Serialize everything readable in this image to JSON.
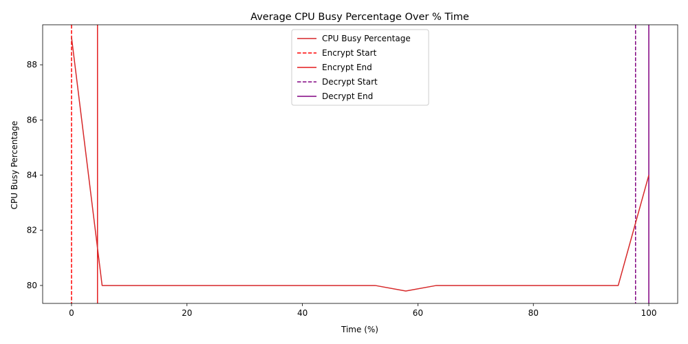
{
  "chart_data": {
    "type": "line",
    "title": "Average CPU Busy Percentage Over % Time",
    "xlabel": "Time (%)",
    "ylabel": "CPU Busy Percentage",
    "xlim": [
      -5,
      105
    ],
    "ylim": [
      79.35,
      89.45
    ],
    "xticks": [
      0,
      20,
      40,
      60,
      80,
      100
    ],
    "yticks": [
      80,
      82,
      84,
      86,
      88
    ],
    "grid": false,
    "legend_position": "top-center",
    "series": [
      {
        "name": "CPU Busy Percentage",
        "color": "#d62728",
        "style": "solid",
        "x": [
          0,
          5.3,
          52.6,
          57.9,
          63.2,
          94.7,
          100
        ],
        "y": [
          89.0,
          80.0,
          80.0,
          79.8,
          80.0,
          80.0,
          84.0
        ]
      }
    ],
    "vertical_lines": [
      {
        "name": "Encrypt Start",
        "x": 0,
        "color": "#ff0000",
        "style": "dashed"
      },
      {
        "name": "Encrypt End",
        "x": 4.5,
        "color": "#e31a1c",
        "style": "solid"
      },
      {
        "name": "Decrypt Start",
        "x": 97.7,
        "color": "#800080",
        "style": "dashed"
      },
      {
        "name": "Decrypt End",
        "x": 100,
        "color": "#800080",
        "style": "solid"
      }
    ]
  }
}
